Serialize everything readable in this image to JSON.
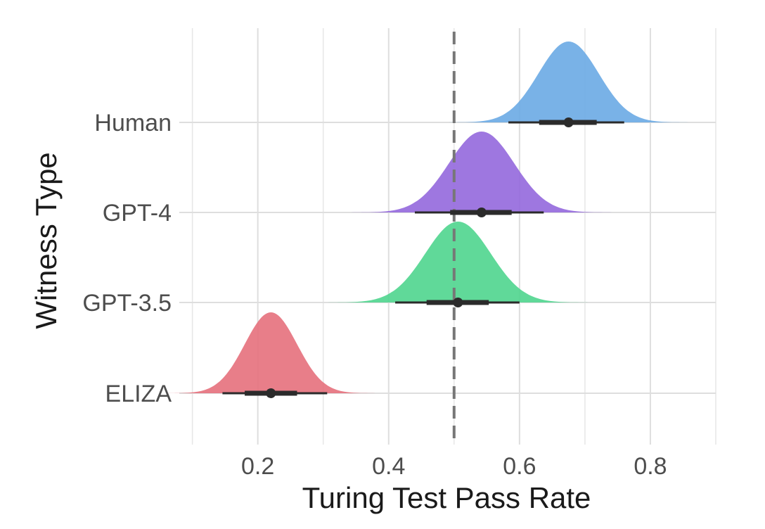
{
  "chart_data": {
    "type": "density-ridgeline",
    "title": "",
    "xlabel": "Turing Test Pass Rate",
    "ylabel": "Witness Type",
    "xlim": [
      0.08,
      0.9
    ],
    "x_ticks": [
      0.2,
      0.4,
      0.6,
      0.8
    ],
    "x_tick_labels": [
      "0.2",
      "0.4",
      "0.6",
      "0.8"
    ],
    "reference_line": {
      "x": 0.5,
      "style": "dashed"
    },
    "grid": true,
    "series": [
      {
        "name": "Human",
        "color": "#6aaae4",
        "mean": 0.675,
        "sd": 0.046,
        "ci66": [
          0.63,
          0.718
        ],
        "ci95": [
          0.583,
          0.76
        ]
      },
      {
        "name": "GPT-4",
        "color": "#9468dd",
        "mean": 0.542,
        "sd": 0.05,
        "ci66": [
          0.494,
          0.588
        ],
        "ci95": [
          0.44,
          0.637
        ]
      },
      {
        "name": "GPT-3.5",
        "color": "#4fd58e",
        "mean": 0.506,
        "sd": 0.05,
        "ci66": [
          0.458,
          0.553
        ],
        "ci95": [
          0.41,
          0.6
        ]
      },
      {
        "name": "ELIZA",
        "color": "#e6707c",
        "mean": 0.22,
        "sd": 0.04,
        "ci66": [
          0.18,
          0.26
        ],
        "ci95": [
          0.146,
          0.306
        ]
      }
    ]
  }
}
